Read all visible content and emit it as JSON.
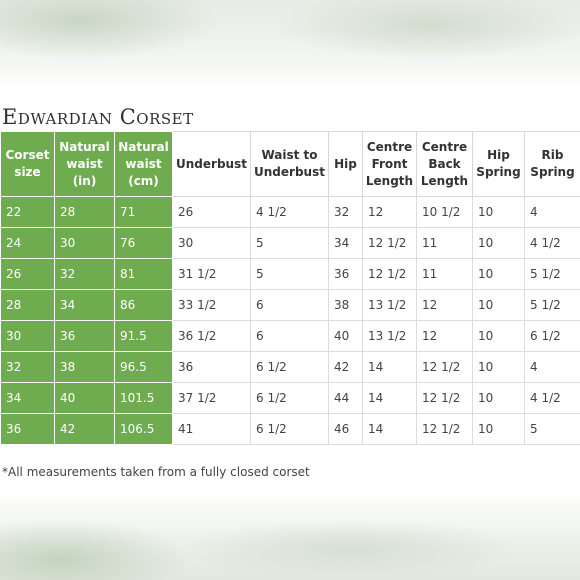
{
  "title": "Edwardian Corset",
  "colors": {
    "accent": "#6fac4f",
    "accent_text": "#ffffff",
    "body_text": "#444444",
    "border": "#dcdcdc"
  },
  "headers": [
    "Corset size",
    "Natural waist (in)",
    "Natural waist (cm)",
    "Underbust",
    "Waist to Underbust",
    "Hip",
    "Centre Front Length",
    "Centre Back Length",
    "Hip Spring",
    "Rib Spring"
  ],
  "rows": [
    [
      "22",
      "28",
      "71",
      "26",
      "4 1/2",
      "32",
      "12",
      "10 1/2",
      "10",
      "4"
    ],
    [
      "24",
      "30",
      "76",
      "30",
      "5",
      "34",
      "12 1/2",
      "11",
      "10",
      "4 1/2"
    ],
    [
      "26",
      "32",
      "81",
      "31 1/2",
      "5",
      "36",
      "12 1/2",
      "11",
      "10",
      "5 1/2"
    ],
    [
      "28",
      "34",
      "86",
      "33 1/2",
      "6",
      "38",
      "13 1/2",
      "12",
      "10",
      "5 1/2"
    ],
    [
      "30",
      "36",
      "91.5",
      "36 1/2",
      "6",
      "40",
      "13 1/2",
      "12",
      "10",
      "6 1/2"
    ],
    [
      "32",
      "38",
      "96.5",
      "36",
      "6 1/2",
      "42",
      "14",
      "12 1/2",
      "10",
      "4"
    ],
    [
      "34",
      "40",
      "101.5",
      "37 1/2",
      "6 1/2",
      "44",
      "14",
      "12 1/2",
      "10",
      "4 1/2"
    ],
    [
      "36",
      "42",
      "106.5",
      "41",
      "6 1/2",
      "46",
      "14",
      "12 1/2",
      "10",
      "5"
    ]
  ],
  "footnote": "*All measurements taken from a fully closed corset"
}
